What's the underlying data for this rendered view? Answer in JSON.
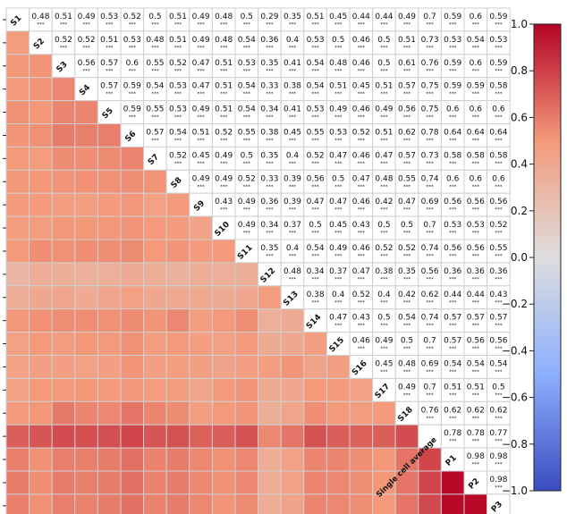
{
  "chart_data": {
    "type": "heatmap",
    "title": "",
    "labels": [
      "S1",
      "S2",
      "S3",
      "S4",
      "S5",
      "S6",
      "S7",
      "S8",
      "S9",
      "S10",
      "S11",
      "S12",
      "S13",
      "S14",
      "S15",
      "S16",
      "S17",
      "S18",
      "Single cell average",
      "P1",
      "P2",
      "P3"
    ],
    "significance_marker": "***",
    "upper": [
      [
        "",
        "0.48",
        "0.51",
        "0.49",
        "0.53",
        "0.52",
        "0.5",
        "0.51",
        "0.49",
        "0.48",
        "0.5",
        "0.29",
        "0.35",
        "0.51",
        "0.45",
        "0.44",
        "0.44",
        "0.49",
        "0.7",
        "0.59",
        "0.6",
        "0.59"
      ],
      [
        "",
        "",
        "0.52",
        "0.52",
        "0.51",
        "0.53",
        "0.48",
        "0.51",
        "0.49",
        "0.48",
        "0.54",
        "0.36",
        "0.4",
        "0.53",
        "0.5",
        "0.46",
        "0.5",
        "0.51",
        "0.73",
        "0.53",
        "0.54",
        "0.53"
      ],
      [
        "",
        "",
        "",
        "0.56",
        "0.57",
        "0.6",
        "0.55",
        "0.52",
        "0.47",
        "0.51",
        "0.53",
        "0.35",
        "0.41",
        "0.54",
        "0.48",
        "0.46",
        "0.5",
        "0.61",
        "0.76",
        "0.59",
        "0.6",
        "0.59"
      ],
      [
        "",
        "",
        "",
        "",
        "0.57",
        "0.59",
        "0.54",
        "0.53",
        "0.47",
        "0.51",
        "0.54",
        "0.33",
        "0.38",
        "0.54",
        "0.51",
        "0.45",
        "0.51",
        "0.57",
        "0.75",
        "0.59",
        "0.59",
        "0.58"
      ],
      [
        "",
        "",
        "",
        "",
        "",
        "0.59",
        "0.55",
        "0.53",
        "0.49",
        "0.51",
        "0.54",
        "0.34",
        "0.41",
        "0.53",
        "0.49",
        "0.46",
        "0.49",
        "0.56",
        "0.75",
        "0.6",
        "0.6",
        "0.6"
      ],
      [
        "",
        "",
        "",
        "",
        "",
        "",
        "0.57",
        "0.54",
        "0.51",
        "0.52",
        "0.55",
        "0.38",
        "0.45",
        "0.55",
        "0.53",
        "0.52",
        "0.51",
        "0.62",
        "0.78",
        "0.64",
        "0.64",
        "0.64"
      ],
      [
        "",
        "",
        "",
        "",
        "",
        "",
        "",
        "0.52",
        "0.45",
        "0.49",
        "0.5",
        "0.35",
        "0.4",
        "0.52",
        "0.47",
        "0.46",
        "0.47",
        "0.57",
        "0.73",
        "0.58",
        "0.58",
        "0.58"
      ],
      [
        "",
        "",
        "",
        "",
        "",
        "",
        "",
        "",
        "0.49",
        "0.49",
        "0.52",
        "0.33",
        "0.39",
        "0.56",
        "0.5",
        "0.47",
        "0.48",
        "0.55",
        "0.74",
        "0.6",
        "0.6",
        "0.6"
      ],
      [
        "",
        "",
        "",
        "",
        "",
        "",
        "",
        "",
        "",
        "0.43",
        "0.49",
        "0.36",
        "0.39",
        "0.47",
        "0.47",
        "0.46",
        "0.42",
        "0.47",
        "0.69",
        "0.56",
        "0.56",
        "0.56"
      ],
      [
        "",
        "",
        "",
        "",
        "",
        "",
        "",
        "",
        "",
        "",
        "0.49",
        "0.34",
        "0.37",
        "0.5",
        "0.45",
        "0.43",
        "0.5",
        "0.5",
        "0.7",
        "0.53",
        "0.53",
        "0.52"
      ],
      [
        "",
        "",
        "",
        "",
        "",
        "",
        "",
        "",
        "",
        "",
        "",
        "0.35",
        "0.4",
        "0.54",
        "0.49",
        "0.46",
        "0.52",
        "0.52",
        "0.74",
        "0.56",
        "0.56",
        "0.55"
      ],
      [
        "",
        "",
        "",
        "",
        "",
        "",
        "",
        "",
        "",
        "",
        "",
        "",
        "0.48",
        "0.34",
        "0.37",
        "0.47",
        "0.38",
        "0.35",
        "0.56",
        "0.36",
        "0.36",
        "0.36"
      ],
      [
        "",
        "",
        "",
        "",
        "",
        "",
        "",
        "",
        "",
        "",
        "",
        "",
        "",
        "0.38",
        "0.4",
        "0.52",
        "0.4",
        "0.42",
        "0.62",
        "0.44",
        "0.44",
        "0.43"
      ],
      [
        "",
        "",
        "",
        "",
        "",
        "",
        "",
        "",
        "",
        "",
        "",
        "",
        "",
        "",
        "0.47",
        "0.43",
        "0.5",
        "0.54",
        "0.74",
        "0.57",
        "0.57",
        "0.57"
      ],
      [
        "",
        "",
        "",
        "",
        "",
        "",
        "",
        "",
        "",
        "",
        "",
        "",
        "",
        "",
        "",
        "0.46",
        "0.49",
        "0.5",
        "0.7",
        "0.57",
        "0.56",
        "0.56"
      ],
      [
        "",
        "",
        "",
        "",
        "",
        "",
        "",
        "",
        "",
        "",
        "",
        "",
        "",
        "",
        "",
        "",
        "0.45",
        "0.48",
        "0.69",
        "0.54",
        "0.54",
        "0.54"
      ],
      [
        "",
        "",
        "",
        "",
        "",
        "",
        "",
        "",
        "",
        "",
        "",
        "",
        "",
        "",
        "",
        "",
        "",
        "0.49",
        "0.7",
        "0.51",
        "0.51",
        "0.5"
      ],
      [
        "",
        "",
        "",
        "",
        "",
        "",
        "",
        "",
        "",
        "",
        "",
        "",
        "",
        "",
        "",
        "",
        "",
        "",
        "0.76",
        "0.62",
        "0.62",
        "0.62"
      ],
      [
        "",
        "",
        "",
        "",
        "",
        "",
        "",
        "",
        "",
        "",
        "",
        "",
        "",
        "",
        "",
        "",
        "",
        "",
        "",
        "0.78",
        "0.78",
        "0.77"
      ],
      [
        "",
        "",
        "",
        "",
        "",
        "",
        "",
        "",
        "",
        "",
        "",
        "",
        "",
        "",
        "",
        "",
        "",
        "",
        "",
        "",
        "0.98",
        "0.98"
      ],
      [
        "",
        "",
        "",
        "",
        "",
        "",
        "",
        "",
        "",
        "",
        "",
        "",
        "",
        "",
        "",
        "",
        "",
        "",
        "",
        "",
        "",
        "0.98"
      ],
      [
        "",
        "",
        "",
        "",
        "",
        "",
        "",
        "",
        "",
        "",
        "",
        "",
        "",
        "",
        "",
        "",
        "",
        "",
        "",
        "",
        "",
        ""
      ]
    ],
    "colorbar": {
      "vmin": -1.0,
      "vmax": 1.0,
      "ticks": [
        1.0,
        0.8,
        0.6,
        0.4,
        0.2,
        0.0,
        -0.2,
        -0.4,
        -0.6,
        -0.8,
        -1.0
      ],
      "tick_labels": [
        "1.0",
        "0.8",
        "0.6",
        "0.4",
        "0.2",
        "0.0",
        "−0.2",
        "−0.4",
        "−0.6",
        "−0.8",
        "−1.0"
      ],
      "colormap": "coolwarm"
    }
  }
}
